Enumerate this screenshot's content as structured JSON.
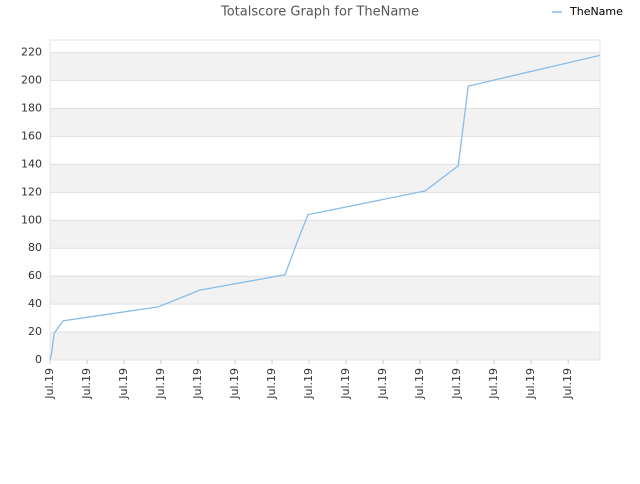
{
  "chart_data": {
    "type": "line",
    "title": "Totalscore Graph for TheName",
    "x": [
      0,
      0.05,
      0.11,
      0.35,
      2.92,
      4.05,
      6.35,
      6.7,
      6.97,
      10.14,
      11.03,
      11.3,
      14.86
    ],
    "series": [
      {
        "name": "TheName",
        "color": "#88bde9",
        "values": [
          0,
          6,
          19,
          28,
          38,
          50,
          61,
          86,
          104,
          121,
          139,
          196,
          218
        ]
      }
    ],
    "xlim": [
      0,
      14.86
    ],
    "xticks": [
      {
        "value": 0,
        "label": "Jul.19"
      },
      {
        "value": 1,
        "label": "Jul.19"
      },
      {
        "value": 2,
        "label": "Jul.19"
      },
      {
        "value": 3,
        "label": "Jul.19"
      },
      {
        "value": 4,
        "label": "Jul.19"
      },
      {
        "value": 5,
        "label": "Jul.19"
      },
      {
        "value": 6,
        "label": "Jul.19"
      },
      {
        "value": 7,
        "label": "Jul.19"
      },
      {
        "value": 8,
        "label": "Jul.19"
      },
      {
        "value": 9,
        "label": "Jul.19"
      },
      {
        "value": 10,
        "label": "Jul.19"
      },
      {
        "value": 11,
        "label": "Jul.19"
      },
      {
        "value": 12,
        "label": "Jul.19"
      },
      {
        "value": 13,
        "label": "Jul.19"
      },
      {
        "value": 14,
        "label": "Jul.19"
      }
    ],
    "ylim": [
      0,
      229
    ],
    "yticks": [
      0,
      20,
      40,
      60,
      80,
      100,
      120,
      140,
      160,
      180,
      200,
      220
    ],
    "grid": true,
    "legend": "top-right"
  }
}
